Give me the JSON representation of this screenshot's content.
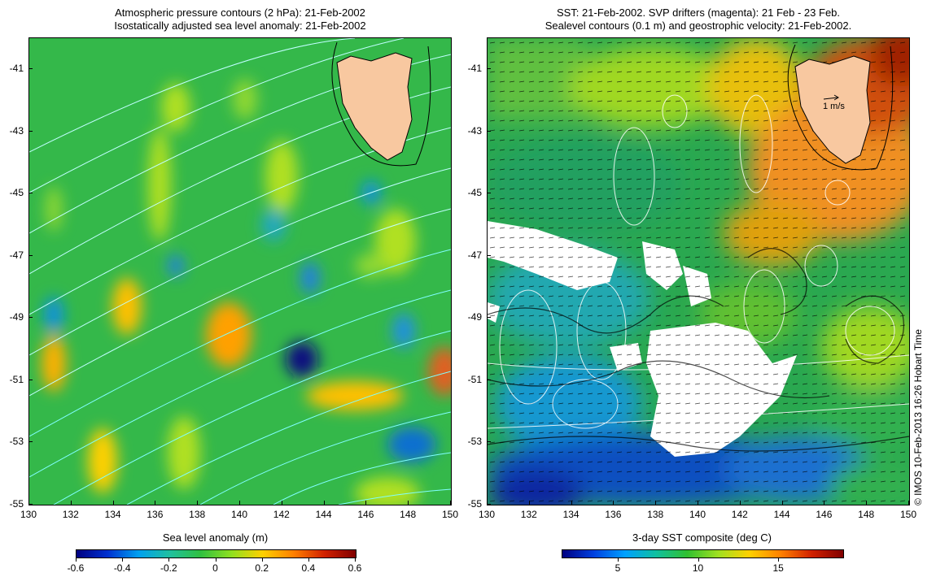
{
  "left_panel": {
    "title_line1": "Atmospheric pressure contours (2 hPa): 21-Feb-2002",
    "title_line2": "Isostatically adjusted sea level anomaly: 21-Feb-2002",
    "colorbar": {
      "title": "Sea level anomaly (m)",
      "min": -0.6,
      "max": 0.6,
      "ticks": [
        "-0.6",
        "-0.4",
        "-0.2",
        "0",
        "0.2",
        "0.4",
        "0.6"
      ],
      "colors": [
        "#000080",
        "#0030d0",
        "#00a0f0",
        "#20c0a0",
        "#30c040",
        "#90e020",
        "#ffd000",
        "#ff8000",
        "#d02000",
        "#800000"
      ]
    }
  },
  "right_panel": {
    "title_line1": "SST: 21-Feb-2002. SVP drifters (magenta): 21 Feb - 23 Feb.",
    "title_line2": "Sealevel contours (0.1 m) and geostrophic velocity: 21-Feb-2002.",
    "velocity_scale_label": "1 m/s",
    "colorbar": {
      "title": "3-day SST composite (deg C)",
      "min": 1.5,
      "max": 19,
      "ticks": [
        "5",
        "10",
        "15"
      ],
      "colors": [
        "#000080",
        "#0040e0",
        "#00a0ff",
        "#10c0a0",
        "#30c030",
        "#a0e020",
        "#ffd000",
        "#ff8000",
        "#d02000",
        "#800000"
      ]
    }
  },
  "axes": {
    "lat_ticks": [
      "-41",
      "-43",
      "-45",
      "-47",
      "-49",
      "-51",
      "-53",
      "-55"
    ],
    "lon_ticks": [
      "130",
      "132",
      "134",
      "136",
      "138",
      "140",
      "142",
      "144",
      "146",
      "148",
      "150"
    ]
  },
  "credit": "© IMOS 10-Feb-2013 16:26 Hobart Time",
  "colors": {
    "land": "#f8c8a0",
    "ocean_base_left": "#30b840",
    "ocean_base_right": "#30a040",
    "pressure_contour": "#80ffff",
    "sealevel_contour": "#ffffff",
    "arrows": "#000000"
  }
}
